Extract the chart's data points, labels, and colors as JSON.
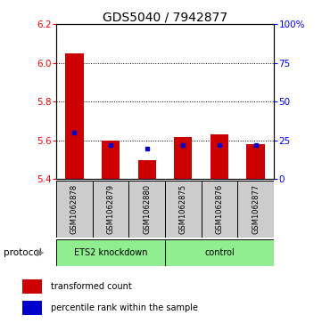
{
  "title": "GDS5040 / 7942877",
  "samples": [
    "GSM1062878",
    "GSM1062879",
    "GSM1062880",
    "GSM1062875",
    "GSM1062876",
    "GSM1062877"
  ],
  "transformed_counts": [
    6.05,
    5.6,
    5.5,
    5.62,
    5.63,
    5.58
  ],
  "percentile_ranks": [
    30,
    22,
    20,
    22,
    22,
    22
  ],
  "ylim_left": [
    5.4,
    6.2
  ],
  "ylim_right": [
    0,
    100
  ],
  "yticks_left": [
    5.4,
    5.6,
    5.8,
    6.0,
    6.2
  ],
  "yticks_right": [
    0,
    25,
    50,
    75,
    100
  ],
  "bar_bottom": 5.4,
  "bar_color": "#cc0000",
  "dot_color": "#0000cc",
  "sample_bg": "#cccccc",
  "group_bg": "#90EE90",
  "legend_red_label": "transformed count",
  "legend_blue_label": "percentile rank within the sample",
  "protocol_label": "protocol",
  "group_label_ets": "ETS2 knockdown",
  "group_label_ctrl": "control",
  "title_fontsize": 10,
  "tick_fontsize": 7.5,
  "sample_fontsize": 6,
  "group_fontsize": 7,
  "legend_fontsize": 7
}
